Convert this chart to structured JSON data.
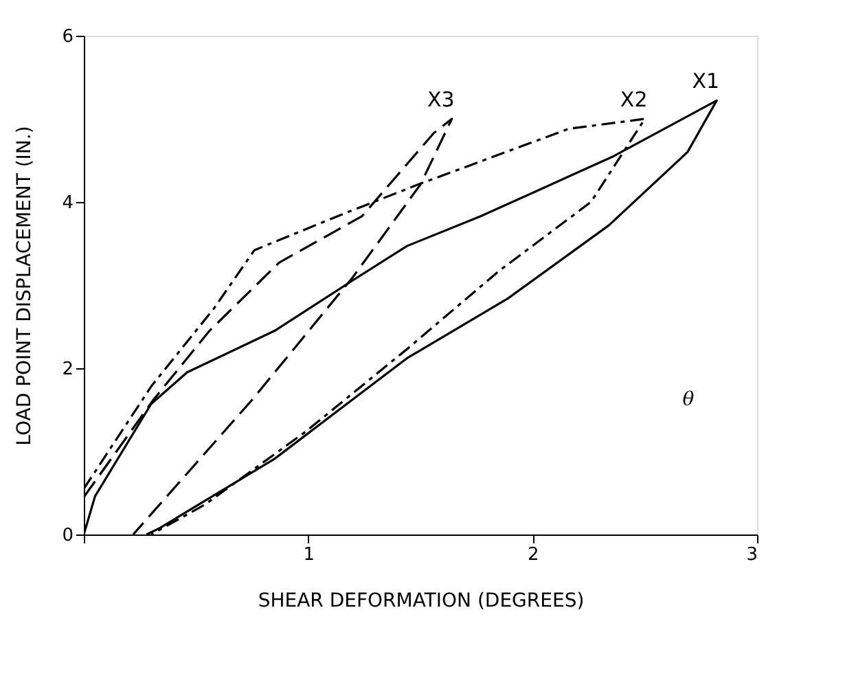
{
  "chart_data": {
    "type": "line",
    "xlabel": "SHEAR DEFORMATION (DEGREES)",
    "ylabel": "LOAD POINT DISPLACEMENT (IN.)",
    "xlim": [
      0,
      3
    ],
    "ylim": [
      0,
      6
    ],
    "xticks": [
      {
        "value": 0,
        "label": null
      },
      1,
      2,
      3
    ],
    "yticks": [
      0,
      2,
      4,
      6
    ],
    "grid": false,
    "marker": "none",
    "series": [
      {
        "name": "X1",
        "color": "#000000",
        "line_style": "solid",
        "x": [
          0,
          0.05,
          0.3,
          0.46,
          0.85,
          1.2,
          1.44,
          1.77,
          2.36,
          2.82,
          2.69,
          2.34,
          1.89,
          1.44,
          0.85,
          0.34,
          0.28
        ],
        "values": [
          0,
          0.46,
          1.57,
          1.95,
          2.45,
          3.06,
          3.47,
          3.83,
          4.55,
          5.22,
          4.6,
          3.72,
          2.84,
          2.12,
          0.91,
          0.08,
          0
        ]
      },
      {
        "name": "X2",
        "color": "#000000",
        "line_style": "dotted",
        "x": [
          0,
          0.3,
          0.58,
          0.76,
          1.15,
          1.49,
          2.16,
          2.5,
          2.26,
          1.85,
          1.44,
          0.99,
          0.54,
          0.3
        ],
        "values": [
          0.55,
          1.78,
          2.72,
          3.42,
          3.85,
          4.21,
          4.88,
          5.0,
          4.0,
          3.17,
          2.23,
          1.24,
          0.36,
          0
        ]
      },
      {
        "name": "X3",
        "color": "#000000",
        "line_style": "dashed",
        "x": [
          0,
          0.31,
          0.56,
          0.87,
          1.24,
          1.56,
          1.64,
          1.5,
          1.2,
          0.75,
          0.22
        ],
        "values": [
          0.45,
          1.62,
          2.45,
          3.27,
          3.83,
          4.83,
          5.0,
          4.21,
          3.1,
          1.62,
          0
        ]
      }
    ],
    "annotations": [
      "θ"
    ]
  }
}
